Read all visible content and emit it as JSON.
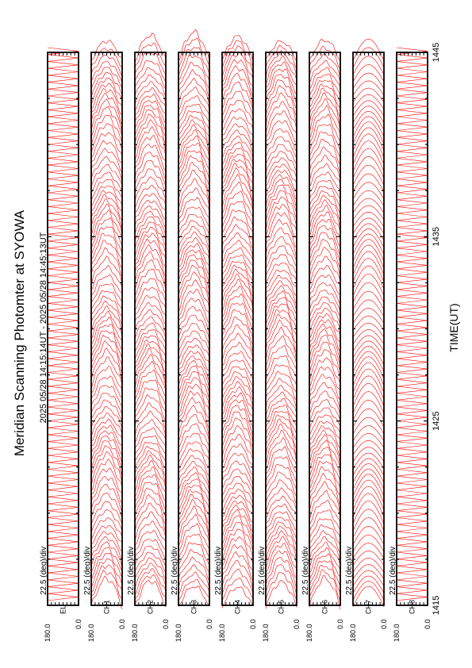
{
  "page": {
    "title": "Meridian Scanning Photomter at SYOWA",
    "time_range": "2025 05/28 14:15:14UT - 2025 05/28 14:45:13UT",
    "xlabel": "TIME(UT)"
  },
  "colors": {
    "trace": "#ff0000",
    "frame": "#000000",
    "background": "#ffffff"
  },
  "chart_data": {
    "type": "line",
    "title": "Meridian Scanning Photomter at SYOWA",
    "subtitle": "2025 05/28 14:15:14UT - 2025 05/28 14:45:13UT",
    "xlabel": "TIME(UT)",
    "orientation": "rotated-90-clockwise",
    "x_ticks": [
      "1415",
      "1425",
      "1435",
      "1445"
    ],
    "xlim": [
      1415,
      1445
    ],
    "grid": false,
    "panel_scale_label": "22.5 (deg)/div",
    "panel_axis_labels": [
      "180.0",
      "0.0"
    ],
    "panels": [
      {
        "channel": "EL",
        "scale": "22.5 (deg)/div",
        "ylim": [
          0,
          180
        ],
        "traces": 80,
        "shape": "oscillation"
      },
      {
        "channel": "CH1",
        "scale": "22.5 (deg)/div",
        "ylim": [
          0,
          180
        ],
        "traces": 80,
        "shape": "scan"
      },
      {
        "channel": "CH2",
        "scale": "22.5 (deg)/div",
        "ylim": [
          0,
          180
        ],
        "traces": 80,
        "shape": "scan"
      },
      {
        "channel": "CH3",
        "scale": "22.5 (deg)/div",
        "ylim": [
          0,
          180
        ],
        "traces": 80,
        "shape": "scan"
      },
      {
        "channel": "CH4",
        "scale": "22.5 (deg)/div",
        "ylim": [
          0,
          180
        ],
        "traces": 80,
        "shape": "scan"
      },
      {
        "channel": "CH5",
        "scale": "22.5 (deg)/div",
        "ylim": [
          0,
          180
        ],
        "traces": 80,
        "shape": "scan"
      },
      {
        "channel": "CH6",
        "scale": "22.5 (deg)/div",
        "ylim": [
          0,
          180
        ],
        "traces": 80,
        "shape": "scan"
      },
      {
        "channel": "CH7",
        "scale": "22.5 (deg)/div",
        "ylim": [
          0,
          180
        ],
        "traces": 80,
        "shape": "smooth-scan"
      },
      {
        "channel": "CH8",
        "scale": "22.5 (deg)/div",
        "ylim": [
          0,
          180
        ],
        "traces": 80,
        "shape": "oscillation"
      }
    ]
  }
}
